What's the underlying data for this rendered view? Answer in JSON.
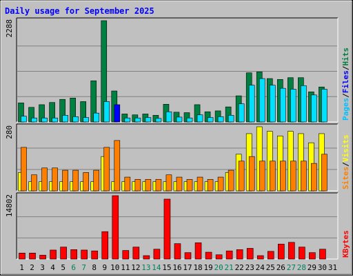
{
  "chart_data": {
    "type": "bar",
    "title": "Daily usage for September 2025",
    "days": [
      "1",
      "2",
      "3",
      "4",
      "5",
      "6",
      "7",
      "8",
      "9",
      "10",
      "11",
      "12",
      "13",
      "14",
      "15",
      "16",
      "17",
      "18",
      "19",
      "20",
      "21",
      "22",
      "23",
      "24",
      "25",
      "26",
      "27",
      "28",
      "29",
      "30",
      "31"
    ],
    "weekend_days": [
      "6",
      "7",
      "13",
      "14",
      "20",
      "21",
      "27",
      "28"
    ],
    "colors": {
      "title": "#0000ff",
      "weekday_label": "#000000",
      "weekend_label": "#00805c",
      "hits": "#008040",
      "files": "#00c0ff",
      "highlight": "#0000ff",
      "pages": "#00e0ff",
      "visits": "#ffff00",
      "sites": "#ff8000",
      "kbytes": "#ff0000",
      "plot_bg": "#c0c0c0",
      "frame_bg": "#c0c0c0"
    },
    "panels": [
      {
        "name": "hits-files-pages",
        "max_label": "2288",
        "ylim": [
          0,
          2288
        ],
        "legend": [
          {
            "text": "Hits",
            "color": "#008040"
          },
          {
            "text": "Files",
            "color": "#0000ff"
          },
          {
            "text": "Pages",
            "color": "#00c0ff"
          }
        ],
        "series": [
          {
            "key": "hits",
            "values": [
              430,
              330,
              390,
              440,
              510,
              540,
              460,
              930,
              2288,
              700,
              180,
              160,
              180,
              150,
              400,
              220,
              210,
              390,
              230,
              250,
              340,
              590,
              1110,
              1130,
              980,
              960,
              1000,
              1000,
              680,
              790,
              0
            ]
          },
          {
            "key": "files",
            "values": [
              130,
              90,
              90,
              90,
              150,
              120,
              100,
              200,
              460,
              390,
              90,
              90,
              100,
              80,
              230,
              110,
              90,
              160,
              100,
              120,
              150,
              410,
              830,
              980,
              830,
              760,
              740,
              820,
              610,
              740,
              0
            ]
          }
        ],
        "highlight_day": "10"
      },
      {
        "name": "visits-sites",
        "max_label": "280",
        "ylim": [
          0,
          280
        ],
        "legend": [
          {
            "text": "Visits",
            "color": "#ffff00"
          },
          {
            "text": "Sites",
            "color": "#ff8000"
          }
        ],
        "series": [
          {
            "key": "visits",
            "values": [
              80,
              40,
              40,
              40,
              40,
              40,
              40,
              40,
              150,
              40,
              40,
              40,
              40,
              40,
              40,
              40,
              40,
              40,
              40,
              40,
              80,
              160,
              250,
              280,
              260,
              240,
              260,
              250,
              210,
              250,
              0
            ]
          },
          {
            "key": "sites",
            "values": [
              190,
              70,
              100,
              100,
              90,
              90,
              80,
              90,
              190,
              220,
              60,
              50,
              50,
              50,
              70,
              60,
              50,
              60,
              50,
              60,
              90,
              130,
              150,
              130,
              130,
              130,
              130,
              130,
              120,
              160,
              0
            ]
          }
        ]
      },
      {
        "name": "kbytes",
        "max_label": "14802",
        "ylim": [
          0,
          14802
        ],
        "legend": [
          {
            "text": "KBytes",
            "color": "#ff0000"
          }
        ],
        "series": [
          {
            "key": "kbytes",
            "values": [
              1400,
              1400,
              900,
              2100,
              2800,
              2200,
              2100,
              1900,
              6400,
              14802,
              2000,
              2800,
              800,
              2300,
              14000,
              3600,
              1500,
              3800,
              1600,
              1000,
              1900,
              2200,
              2500,
              800,
              1800,
              3500,
              3900,
              2800,
              1500,
              2300,
              0
            ]
          }
        ]
      }
    ]
  }
}
